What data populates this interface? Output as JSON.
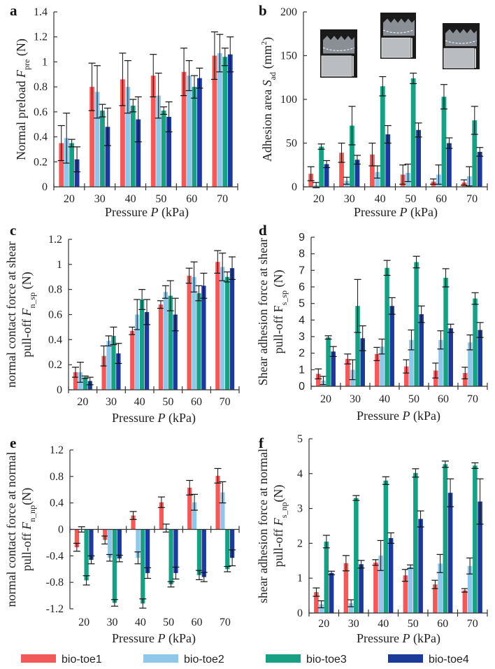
{
  "legend": [
    {
      "name": "bio-toe1",
      "color": "#f25a5a"
    },
    {
      "name": "bio-toe2",
      "color": "#8fc7ea"
    },
    {
      "name": "bio-toe3",
      "color": "#17a083"
    },
    {
      "name": "bio-toe4",
      "color": "#1b3a9a"
    }
  ],
  "chart_data": [
    {
      "type": "bar",
      "panel": "a",
      "categories": [
        "20",
        "30",
        "40",
        "50",
        "60",
        "70"
      ],
      "xlabel": [
        {
          "t": "Pressure "
        },
        {
          "t": "P",
          "i": true
        },
        {
          "t": " (kPa)"
        }
      ],
      "ylabel": [
        [
          {
            "t": "Normal preload "
          },
          {
            "t": "F",
            "i": true
          },
          {
            "t": "pre",
            "sub": true
          },
          {
            "t": "  (N)"
          }
        ]
      ],
      "ylim": [
        0,
        1.4
      ],
      "yticks": [
        "0",
        "0.2",
        "0.4",
        "0.6",
        "0.8",
        "1",
        "1.2",
        "1.4"
      ],
      "ytick_values": [
        0,
        0.2,
        0.4,
        0.6,
        0.8,
        1,
        1.2,
        1.4
      ],
      "series": [
        {
          "name": "bio-toe1",
          "values": [
            0.35,
            0.8,
            0.86,
            0.89,
            0.92,
            1.05
          ],
          "errors": [
            0.14,
            0.19,
            0.21,
            0.17,
            0.19,
            0.19
          ]
        },
        {
          "name": "bio-toe2",
          "values": [
            0.39,
            0.76,
            0.8,
            0.73,
            0.89,
            1.07
          ],
          "errors": [
            0.2,
            0.21,
            0.21,
            0.18,
            0.12,
            0.15
          ]
        },
        {
          "name": "bio-toe3",
          "values": [
            0.35,
            0.61,
            0.65,
            0.61,
            0.8,
            1.04
          ],
          "errors": [
            0.03,
            0.05,
            0.05,
            0.03,
            0.09,
            0.07
          ]
        },
        {
          "name": "bio-toe4",
          "values": [
            0.22,
            0.48,
            0.54,
            0.56,
            0.87,
            1.06
          ],
          "errors": [
            0.1,
            0.15,
            0.18,
            0.12,
            0.08,
            0.14
          ]
        }
      ]
    },
    {
      "type": "bar",
      "panel": "b",
      "categories": [
        "20",
        "30",
        "40",
        "50",
        "60",
        "70"
      ],
      "xlabel": [
        {
          "t": "Pressure "
        },
        {
          "t": "P",
          "i": true
        },
        {
          "t": " (kPa)"
        }
      ],
      "ylabel": [
        [
          {
            "t": "Adhesion area "
          },
          {
            "t": "S",
            "i": true
          },
          {
            "t": "ad",
            "sub": true
          },
          {
            "t": "  (mm"
          },
          {
            "t": "2",
            "sup": true
          },
          {
            "t": ")"
          }
        ]
      ],
      "ylim": [
        0,
        200
      ],
      "yticks": [
        "0",
        "50",
        "100",
        "150",
        "200"
      ],
      "ytick_values": [
        0,
        50,
        100,
        150,
        200
      ],
      "series": [
        {
          "name": "bio-toe1",
          "values": [
            15,
            39,
            37,
            14,
            6,
            5
          ],
          "errors": [
            8,
            11,
            13,
            11,
            3,
            3
          ]
        },
        {
          "name": "bio-toe2",
          "values": [
            2,
            7,
            17,
            16,
            14,
            12
          ],
          "errors": [
            3,
            4,
            7,
            10,
            11,
            11
          ]
        },
        {
          "name": "bio-toe3",
          "values": [
            46,
            70,
            115,
            124,
            103,
            76
          ],
          "errors": [
            3,
            22,
            11,
            6,
            14,
            16
          ]
        },
        {
          "name": "bio-toe4",
          "values": [
            26,
            31,
            60,
            65,
            50,
            40
          ],
          "errors": [
            4,
            5,
            10,
            8,
            6,
            5
          ]
        }
      ]
    },
    {
      "type": "bar",
      "panel": "c",
      "categories": [
        "20",
        "30",
        "40",
        "50",
        "60",
        "70"
      ],
      "xlabel": [
        {
          "t": "Pressure "
        },
        {
          "t": "P",
          "i": true
        },
        {
          "t": " (kPa)"
        }
      ],
      "ylabel": [
        [
          {
            "t": "normal contact force at shear"
          }
        ],
        [
          {
            "t": "pull-off "
          },
          {
            "t": "F",
            "i": true
          },
          {
            "t": "n_sp",
            "sub": true
          },
          {
            "t": " (N)"
          }
        ]
      ],
      "ylim": [
        0,
        1.2
      ],
      "yticks": [
        "0",
        "0.2",
        "0.4",
        "0.6",
        "0.8",
        "1",
        "1.2"
      ],
      "ytick_values": [
        0,
        0.2,
        0.4,
        0.6,
        0.8,
        1,
        1.2
      ],
      "series": [
        {
          "name": "bio-toe1",
          "values": [
            0.14,
            0.27,
            0.47,
            0.68,
            0.91,
            1.02
          ],
          "errors": [
            0.04,
            0.08,
            0.03,
            0.03,
            0.06,
            0.09
          ]
        },
        {
          "name": "bio-toe2",
          "values": [
            0.14,
            0.39,
            0.6,
            0.78,
            0.9,
            0.98
          ],
          "errors": [
            0.08,
            0.04,
            0.12,
            0.05,
            0.12,
            0.11
          ]
        },
        {
          "name": "bio-toe3",
          "values": [
            0.1,
            0.43,
            0.72,
            0.75,
            0.77,
            0.9
          ],
          "errors": [
            0.01,
            0.07,
            0.08,
            0.12,
            0.06,
            0.04
          ]
        },
        {
          "name": "bio-toe4",
          "values": [
            0.07,
            0.29,
            0.62,
            0.6,
            0.83,
            0.97
          ],
          "errors": [
            0.03,
            0.08,
            0.1,
            0.13,
            0.1,
            0.09
          ]
        }
      ]
    },
    {
      "type": "bar",
      "panel": "d",
      "categories": [
        "20",
        "30",
        "40",
        "50",
        "60",
        "70"
      ],
      "xlabel": [
        {
          "t": "Pressure "
        },
        {
          "t": "P",
          "i": true
        },
        {
          "t": " (kPa)"
        }
      ],
      "ylabel": [
        [
          {
            "t": "Shear adhesion force at shear"
          }
        ],
        [
          {
            "t": "pull-off F"
          },
          {
            "t": "s_sp",
            "sub": true
          },
          {
            "t": " (N)"
          }
        ]
      ],
      "ylim": [
        0,
        9
      ],
      "yticks": [
        "0",
        "1",
        "2",
        "3",
        "4",
        "5",
        "6",
        "7",
        "8",
        "9"
      ],
      "ytick_values": [
        0,
        1,
        2,
        3,
        4,
        5,
        6,
        7,
        8,
        9
      ],
      "series": [
        {
          "name": "bio-toe1",
          "values": [
            0.75,
            1.65,
            1.95,
            1.2,
            0.95,
            0.8
          ],
          "errors": [
            0.3,
            0.3,
            0.4,
            0.4,
            0.45,
            0.35
          ]
        },
        {
          "name": "bio-toe2",
          "values": [
            0.35,
            1.0,
            2.4,
            2.8,
            2.8,
            2.65
          ],
          "errors": [
            0.25,
            0.6,
            0.45,
            0.6,
            0.55,
            0.45
          ]
        },
        {
          "name": "bio-toe3",
          "values": [
            2.95,
            4.85,
            7.15,
            7.5,
            6.55,
            5.3
          ],
          "errors": [
            0.1,
            1.6,
            0.45,
            0.35,
            0.55,
            0.35
          ]
        },
        {
          "name": "bio-toe4",
          "values": [
            2.1,
            2.9,
            4.85,
            4.35,
            3.5,
            3.4
          ],
          "errors": [
            0.3,
            0.75,
            0.5,
            0.5,
            0.25,
            0.45
          ]
        }
      ]
    },
    {
      "type": "bar",
      "panel": "e",
      "categories": [
        "20",
        "30",
        "40",
        "50",
        "60",
        "70"
      ],
      "xlabel": [
        {
          "t": "Pressure "
        },
        {
          "t": "P",
          "i": true
        },
        {
          "t": " (kPa)"
        }
      ],
      "ylabel": [
        [
          {
            "t": "normal contact force at normal"
          }
        ],
        [
          {
            "t": "pull-off "
          },
          {
            "t": "F",
            "i": true
          },
          {
            "t": "n_np",
            "sub": true
          },
          {
            "t": "(N)"
          }
        ]
      ],
      "ylim": [
        -1.2,
        1.2
      ],
      "yticks": [
        "-1.2",
        "-0.8",
        "-0.4",
        "0",
        "0.4",
        "0.8",
        "1.2"
      ],
      "ytick_values": [
        -1.2,
        -0.8,
        -0.4,
        0,
        0.4,
        0.8,
        1.2
      ],
      "series": [
        {
          "name": "bio-toe1",
          "values": [
            -0.27,
            -0.16,
            0.21,
            0.41,
            0.63,
            0.81
          ],
          "errors": [
            0.06,
            0.06,
            0.06,
            0.08,
            0.11,
            0.11
          ]
        },
        {
          "name": "bio-toe2",
          "values": [
            0.0,
            -0.43,
            -0.43,
            0.02,
            0.41,
            0.56
          ],
          "errors": [
            0.04,
            0.05,
            0.09,
            0.06,
            0.12,
            0.16
          ]
        },
        {
          "name": "bio-toe3",
          "values": [
            -0.77,
            -1.11,
            -1.12,
            -0.83,
            -0.69,
            -0.6
          ],
          "errors": [
            0.07,
            0.05,
            0.07,
            0.04,
            0.07,
            0.04
          ]
        },
        {
          "name": "bio-toe4",
          "values": [
            -0.46,
            -0.44,
            -0.66,
            -0.66,
            -0.72,
            -0.43
          ],
          "errors": [
            0.06,
            0.05,
            0.08,
            0.09,
            0.07,
            0.12
          ]
        }
      ]
    },
    {
      "type": "bar",
      "panel": "f",
      "categories": [
        "20",
        "30",
        "40",
        "50",
        "60",
        "70"
      ],
      "xlabel": [
        {
          "t": "Pressure "
        },
        {
          "t": "P",
          "i": true
        },
        {
          "t": " (kPa)"
        }
      ],
      "ylabel": [
        [
          {
            "t": "shear adhesion force at normal"
          }
        ],
        [
          {
            "t": "pull-off "
          },
          {
            "t": "F",
            "i": true
          },
          {
            "t": "s_np",
            "sub": true
          },
          {
            "t": "(N)"
          }
        ]
      ],
      "ylim": [
        0,
        5
      ],
      "yticks": [
        "0",
        "1",
        "2",
        "3",
        "4",
        "5"
      ],
      "ytick_values": [
        0,
        1,
        2,
        3,
        4,
        5
      ],
      "series": [
        {
          "name": "bio-toe1",
          "values": [
            0.6,
            1.43,
            1.45,
            1.08,
            0.82,
            0.65
          ],
          "errors": [
            0.12,
            0.22,
            0.08,
            0.17,
            0.12,
            0.05
          ]
        },
        {
          "name": "bio-toe2",
          "values": [
            0.25,
            0.28,
            1.65,
            1.33,
            1.42,
            1.35
          ],
          "errors": [
            0.1,
            0.1,
            0.43,
            0.05,
            0.26,
            0.23
          ]
        },
        {
          "name": "bio-toe3",
          "values": [
            2.05,
            3.3,
            3.8,
            4.02,
            4.27,
            4.23
          ],
          "errors": [
            0.18,
            0.07,
            0.11,
            0.12,
            0.09,
            0.08
          ]
        },
        {
          "name": "bio-toe4",
          "values": [
            1.15,
            1.4,
            2.15,
            2.7,
            3.45,
            3.2
          ],
          "errors": [
            0.05,
            0.11,
            0.15,
            0.23,
            0.4,
            0.65
          ]
        }
      ]
    }
  ]
}
